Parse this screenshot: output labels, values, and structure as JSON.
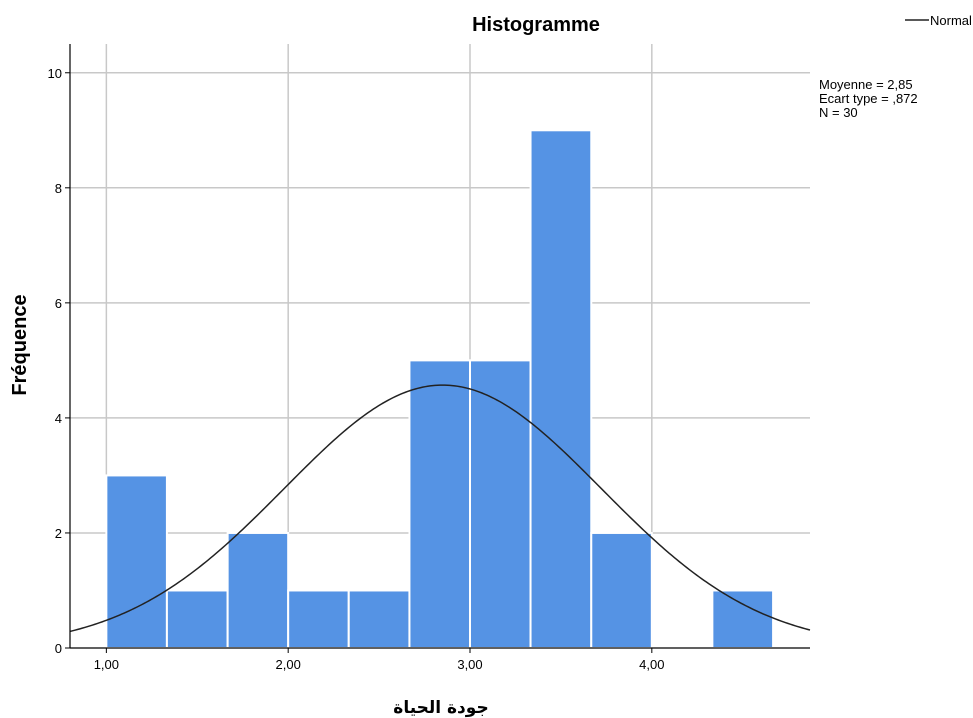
{
  "chart_data": {
    "type": "bar",
    "title": "Histogramme",
    "xlabel": "جودة الحياة",
    "ylabel": "Fréquence",
    "bin_width": 0.333,
    "bins": [
      {
        "start": 1.0,
        "end": 1.333,
        "count": 3
      },
      {
        "start": 1.333,
        "end": 1.667,
        "count": 1
      },
      {
        "start": 1.667,
        "end": 2.0,
        "count": 2
      },
      {
        "start": 2.0,
        "end": 2.333,
        "count": 1
      },
      {
        "start": 2.333,
        "end": 2.667,
        "count": 1
      },
      {
        "start": 2.667,
        "end": 3.0,
        "count": 5
      },
      {
        "start": 3.0,
        "end": 3.333,
        "count": 5
      },
      {
        "start": 3.333,
        "end": 3.667,
        "count": 9
      },
      {
        "start": 3.667,
        "end": 4.0,
        "count": 2
      },
      {
        "start": 4.0,
        "end": 4.333,
        "count": 0
      },
      {
        "start": 4.333,
        "end": 4.667,
        "count": 1
      }
    ],
    "xlim": [
      0.8,
      4.87
    ],
    "ylim": [
      0,
      10.5
    ],
    "x_ticks": [
      1.0,
      2.0,
      3.0,
      4.0
    ],
    "x_tick_labels": [
      "1,00",
      "2,00",
      "3,00",
      "4,00"
    ],
    "y_ticks": [
      0,
      2,
      4,
      6,
      8,
      10
    ],
    "y_tick_labels": [
      "0",
      "2",
      "4",
      "6",
      "8",
      "10"
    ],
    "grid": true,
    "normal_curve": {
      "mean": 2.85,
      "sd": 0.872,
      "n": 30
    },
    "stats": [
      "Moyenne = 2,85",
      "Ecart type = ,872",
      "N = 30"
    ],
    "legend": {
      "entries": [
        "Normal"
      ],
      "placement": "top-right"
    },
    "colors": {
      "bar": "#5593e4",
      "bar_edge": "#ffffff",
      "grid": "#c8c8c8",
      "curve": "#222222",
      "axis": "#000000"
    }
  }
}
